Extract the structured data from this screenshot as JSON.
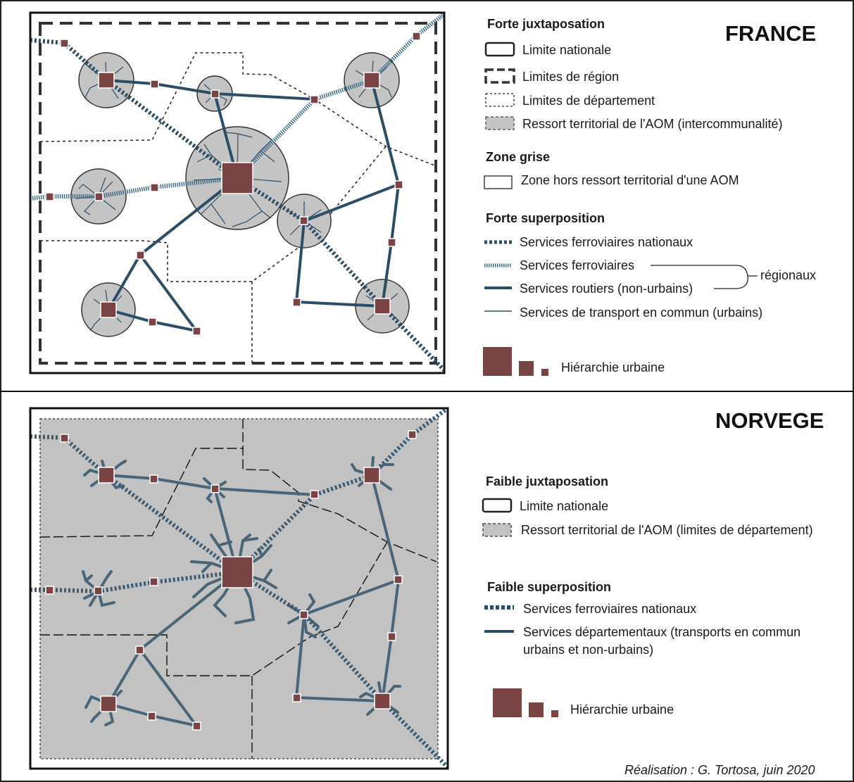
{
  "france": {
    "title": "FRANCE",
    "legend": {
      "juxtaposition_title": "Forte juxtaposation",
      "limite_nationale": "Limite nationale",
      "limites_region": "Limites de région",
      "limites_departement": "Limites de département",
      "ressort_aom": "Ressort territorial de l'AOM (intercommunalité)",
      "zone_grise_title": "Zone grise",
      "zone_hors": "Zone hors ressort  territorial d'une AOM",
      "superposition_title": "Forte superposition",
      "ferro_nationaux": "Services ferroviaires nationaux",
      "ferro": "Services ferroviaires",
      "routiers": "Services routiers (non-urbains)",
      "regionaux": "régionaux",
      "urbains": "Services de transport en commun (urbains)",
      "hierarchie": "Hiérarchie urbaine"
    }
  },
  "norvege": {
    "title": "NORVEGE",
    "legend": {
      "juxtaposition_title": "Faible juxtaposation",
      "limite_nationale": "Limite nationale",
      "ressort_aom": "Ressort territorial de l'AOM (limites de département)",
      "superposition_title": "Faible superposition",
      "ferro_nationaux": "Services ferroviaires nationaux",
      "departementaux_line1": "Services départementaux (transports en commun",
      "departementaux_line2": "urbains et non-urbains)",
      "hierarchie": "Hiérarchie urbaine"
    }
  },
  "credit": "Réalisation : G. Tortosa, juin 2020",
  "colors": {
    "city": "#7a4444",
    "route": "#2c4d66",
    "rail": "#3a5a73",
    "aom": "#c2c2c2",
    "border": "#111111"
  }
}
